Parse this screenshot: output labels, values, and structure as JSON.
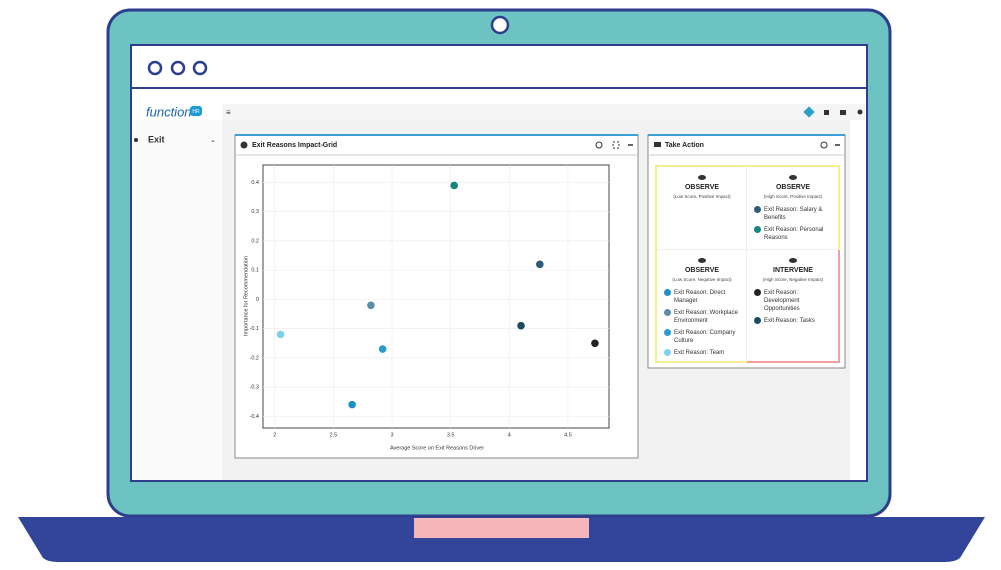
{
  "app": {
    "logo": "function",
    "logo_badge": "HR",
    "nav_item": "Exit"
  },
  "take_action": {
    "title": "Take Action",
    "quadrants": [
      {
        "title": "OBSERVE",
        "subtitle": "(Low Score, Positive Impact)",
        "items": []
      },
      {
        "title": "OBSERVE",
        "subtitle": "(High Score, Positive Impact)",
        "items": [
          {
            "name": "Exit Reason: Salary & Benefits",
            "color": "#2b5d7a"
          },
          {
            "name": "Exit Reason: Personal Reasons",
            "color": "#14857f"
          }
        ]
      },
      {
        "title": "OBSERVE",
        "subtitle": "(Low Score, Negative Impact)",
        "items": [
          {
            "name": "Exit Reason: Direct Manager",
            "color": "#1e90c8"
          },
          {
            "name": "Exit Reason: Workplace Environment",
            "color": "#5b8ca8"
          },
          {
            "name": "Exit Reason: Company Culture",
            "color": "#2a9bd0"
          },
          {
            "name": "Exit Reason: Team",
            "color": "#7fd0ef"
          }
        ]
      },
      {
        "title": "INTERVENE",
        "subtitle": "(High Score, Negative Impact)",
        "items": [
          {
            "name": "Exit Reason: Development Opportunities",
            "color": "#222222"
          },
          {
            "name": "Exit Reason: Tasks",
            "color": "#1b4a63"
          }
        ]
      }
    ]
  },
  "chart_data": {
    "type": "scatter",
    "title": "Exit Reasons Impact-Grid",
    "x_label": "Average Score on Exit Reasons Driver",
    "y_label": "Importance for Recommendation",
    "x": [
      4.26,
      3.53,
      2.66,
      2.82,
      2.92,
      2.05,
      4.73,
      4.1
    ],
    "values": [
      0.12,
      0.39,
      -0.36,
      -0.02,
      -0.17,
      -0.12,
      -0.15,
      -0.09
    ],
    "colors": [
      "#2b5d7a",
      "#14857f",
      "#1e90c8",
      "#5b8ca8",
      "#2a9bd0",
      "#7fd0ef",
      "#222222",
      "#1b4a63"
    ],
    "xlim": [
      1.9,
      4.85
    ],
    "ylim": [
      -0.44,
      0.46
    ],
    "xticks": [
      2,
      2.5,
      3,
      3.5,
      4,
      4.5
    ],
    "yticks": [
      0.4,
      0.3,
      0.2,
      0.1,
      0,
      -0.1,
      -0.2,
      -0.3,
      -0.4
    ],
    "grid": true
  }
}
